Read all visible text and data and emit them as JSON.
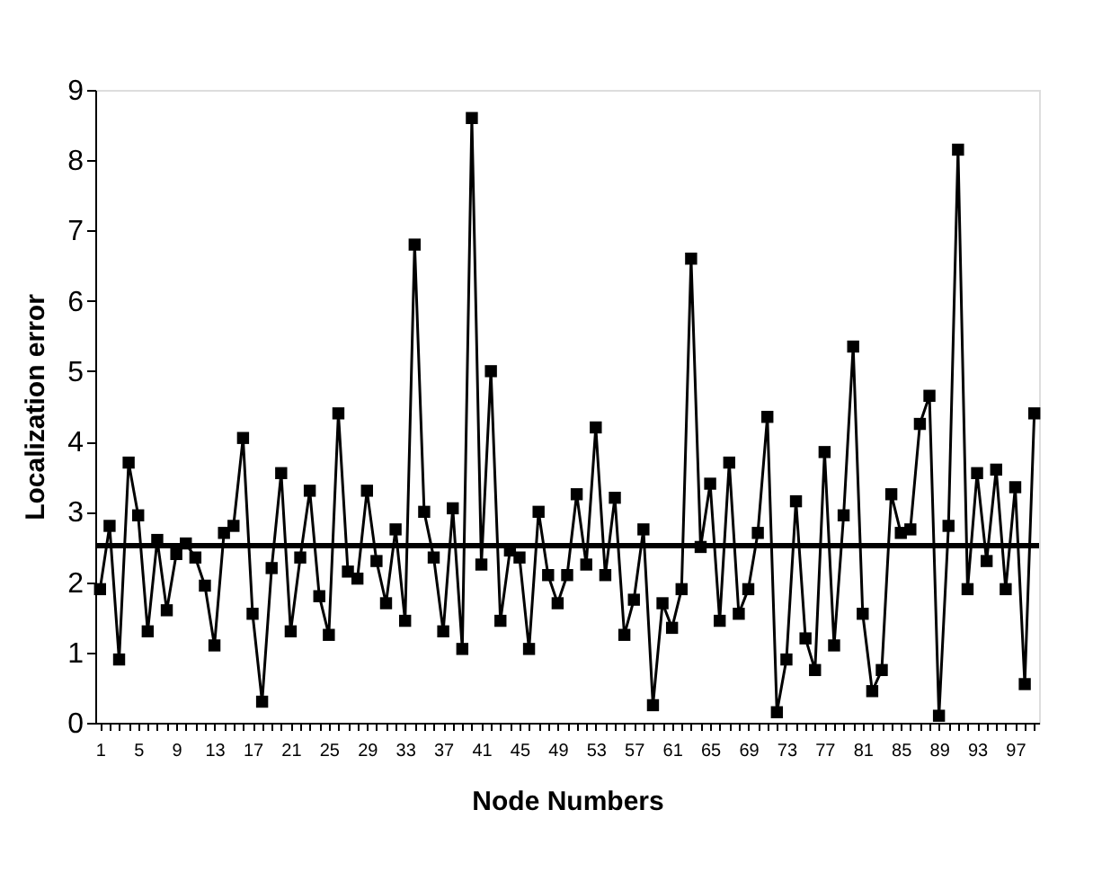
{
  "chart_data": {
    "type": "line",
    "xlabel": "Node Numbers",
    "ylabel": "Localization error",
    "categories": [
      "1",
      null,
      null,
      null,
      "5",
      null,
      null,
      null,
      "9",
      null,
      null,
      null,
      "13",
      null,
      null,
      null,
      "17",
      null,
      null,
      null,
      "21",
      null,
      null,
      null,
      "25",
      null,
      null,
      null,
      "29",
      null,
      null,
      null,
      "33",
      null,
      null,
      null,
      "37",
      null,
      null,
      null,
      "41",
      null,
      null,
      null,
      "45",
      null,
      null,
      null,
      "49",
      null,
      null,
      null,
      "53",
      null,
      null,
      null,
      "57",
      null,
      null,
      null,
      "61",
      null,
      null,
      null,
      "65",
      null,
      null,
      null,
      "69",
      null,
      null,
      null,
      "73",
      null,
      null,
      null,
      "77",
      null,
      null,
      null,
      "81",
      null,
      null,
      null,
      "85",
      null,
      null,
      null,
      "89",
      null,
      null,
      null,
      "93",
      null,
      null,
      null,
      "97",
      null,
      null
    ],
    "series": [
      {
        "color": "#000000",
        "values": [
          1.9,
          2.8,
          0.9,
          3.7,
          2.95,
          1.3,
          2.6,
          1.6,
          2.4,
          2.55,
          2.35,
          1.95,
          1.1,
          2.7,
          2.8,
          4.05,
          1.55,
          0.3,
          2.2,
          3.55,
          1.3,
          2.35,
          3.3,
          1.8,
          1.25,
          4.4,
          2.15,
          2.05,
          3.3,
          2.3,
          1.7,
          2.75,
          1.45,
          6.8,
          3.0,
          2.35,
          1.3,
          3.05,
          1.05,
          8.6,
          2.25,
          5.0,
          1.45,
          2.45,
          2.35,
          1.05,
          3.0,
          2.1,
          1.7,
          2.1,
          3.25,
          2.25,
          4.2,
          2.1,
          3.2,
          1.25,
          1.75,
          2.75,
          0.25,
          1.7,
          1.35,
          1.9,
          6.6,
          2.5,
          3.4,
          1.45,
          3.7,
          1.55,
          1.9,
          2.7,
          4.35,
          0.15,
          0.9,
          3.15,
          1.2,
          0.75,
          3.85,
          1.1,
          2.95,
          5.35,
          1.55,
          0.45,
          0.75,
          3.25,
          2.7,
          2.75,
          4.25,
          4.65,
          0.1,
          2.8,
          8.15,
          1.9,
          3.55,
          2.3,
          3.6,
          1.9,
          3.35,
          0.55,
          4.4
        ]
      }
    ],
    "ylim": [
      0,
      9
    ],
    "yticks": [
      0,
      1,
      2,
      3,
      4,
      5,
      6,
      7,
      8,
      9
    ],
    "ref_lines": [
      {
        "axis": "y",
        "value": 2.52,
        "color": "#000000"
      }
    ],
    "marker": "square",
    "line_style": "solid",
    "grid": false,
    "legend": false
  }
}
